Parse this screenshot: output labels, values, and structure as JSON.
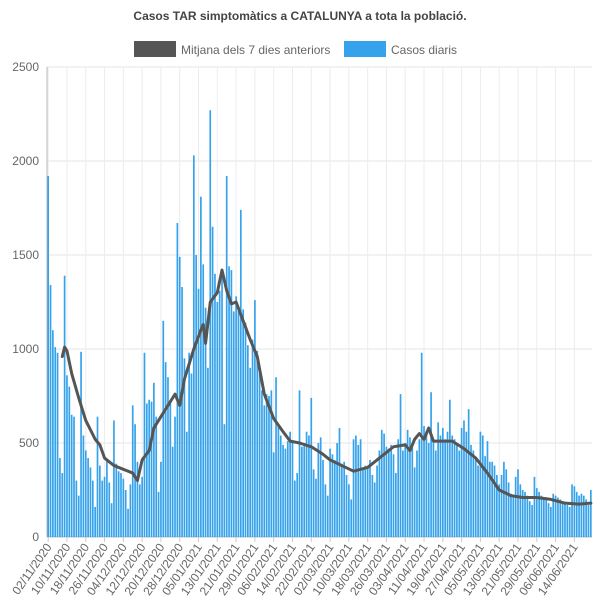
{
  "chart_data": {
    "type": "bar",
    "title": "Casos TAR simptomàtics a CATALUNYA a tota la població.",
    "xlabel": "",
    "ylabel": "",
    "ylim": [
      0,
      2500
    ],
    "yticks": [
      0,
      500,
      1000,
      1500,
      2000,
      2500
    ],
    "grid": true,
    "legend_position": "top-center",
    "x_start_date": "02/11/2020",
    "x_end_date": "21/06/2021",
    "xtick_labels": [
      "02/11/2020",
      "10/11/2020",
      "18/11/2020",
      "26/11/2020",
      "04/12/2020",
      "12/12/2020",
      "20/12/2020",
      "28/12/2020",
      "05/01/2021",
      "13/01/2021",
      "21/01/2021",
      "29/01/2021",
      "06/02/2021",
      "14/02/2021",
      "22/02/2021",
      "02/03/2021",
      "10/03/2021",
      "18/03/2021",
      "26/03/2021",
      "03/04/2021",
      "11/04/2021",
      "19/04/2021",
      "27/04/2021",
      "05/05/2021",
      "13/05/2021",
      "21/05/2021",
      "29/05/2021",
      "06/06/2021",
      "14/06/2021"
    ],
    "series": [
      {
        "name": "Mitjana dels 7 dies anteriors",
        "type": "line",
        "color": "#555555",
        "anchors": [
          [
            "08/11/2020",
            960
          ],
          [
            "09/11/2020",
            1010
          ],
          [
            "10/11/2020",
            990
          ],
          [
            "12/11/2020",
            870
          ],
          [
            "15/11/2020",
            740
          ],
          [
            "18/11/2020",
            620
          ],
          [
            "22/11/2020",
            520
          ],
          [
            "24/11/2020",
            490
          ],
          [
            "26/11/2020",
            420
          ],
          [
            "30/11/2020",
            380
          ],
          [
            "04/12/2020",
            360
          ],
          [
            "08/12/2020",
            340
          ],
          [
            "10/12/2020",
            300
          ],
          [
            "12/12/2020",
            410
          ],
          [
            "15/12/2020",
            460
          ],
          [
            "17/12/2020",
            580
          ],
          [
            "20/12/2020",
            640
          ],
          [
            "24/12/2020",
            720
          ],
          [
            "26/12/2020",
            760
          ],
          [
            "28/12/2020",
            700
          ],
          [
            "30/12/2020",
            840
          ],
          [
            "03/01/2021",
            1000
          ],
          [
            "06/01/2021",
            1100
          ],
          [
            "07/01/2021",
            1130
          ],
          [
            "08/01/2021",
            1030
          ],
          [
            "10/01/2021",
            1250
          ],
          [
            "13/01/2021",
            1300
          ],
          [
            "15/01/2021",
            1420
          ],
          [
            "17/01/2021",
            1310
          ],
          [
            "19/01/2021",
            1240
          ],
          [
            "21/01/2021",
            1250
          ],
          [
            "24/01/2021",
            1150
          ],
          [
            "27/01/2021",
            1050
          ],
          [
            "30/01/2021",
            960
          ],
          [
            "02/02/2021",
            760
          ],
          [
            "06/02/2021",
            630
          ],
          [
            "10/02/2021",
            560
          ],
          [
            "13/02/2021",
            510
          ],
          [
            "17/02/2021",
            500
          ],
          [
            "22/02/2021",
            480
          ],
          [
            "27/02/2021",
            440
          ],
          [
            "02/03/2021",
            410
          ],
          [
            "07/03/2021",
            380
          ],
          [
            "12/03/2021",
            350
          ],
          [
            "18/03/2021",
            370
          ],
          [
            "22/03/2021",
            410
          ],
          [
            "26/03/2021",
            450
          ],
          [
            "29/03/2021",
            480
          ],
          [
            "03/04/2021",
            490
          ],
          [
            "05/04/2021",
            460
          ],
          [
            "07/04/2021",
            520
          ],
          [
            "09/04/2021",
            550
          ],
          [
            "11/04/2021",
            520
          ],
          [
            "13/04/2021",
            580
          ],
          [
            "15/04/2021",
            510
          ],
          [
            "19/04/2021",
            510
          ],
          [
            "23/04/2021",
            510
          ],
          [
            "28/04/2021",
            470
          ],
          [
            "03/05/2021",
            420
          ],
          [
            "08/05/2021",
            340
          ],
          [
            "13/05/2021",
            250
          ],
          [
            "18/05/2021",
            220
          ],
          [
            "23/05/2021",
            210
          ],
          [
            "29/05/2021",
            210
          ],
          [
            "04/06/2021",
            200
          ],
          [
            "10/06/2021",
            180
          ],
          [
            "16/06/2021",
            175
          ],
          [
            "21/06/2021",
            180
          ]
        ]
      },
      {
        "name": "Casos diaris",
        "type": "bar",
        "color": "#36a2eb",
        "values": [
          1920,
          1340,
          1100,
          1010,
          980,
          420,
          340,
          1390,
          860,
          800,
          650,
          640,
          300,
          220,
          985,
          540,
          460,
          420,
          370,
          300,
          160,
          640,
          380,
          300,
          320,
          410,
          290,
          180,
          620,
          390,
          350,
          340,
          310,
          250,
          150,
          280,
          700,
          600,
          400,
          280,
          320,
          980,
          710,
          730,
          720,
          820,
          640,
          240,
          400,
          1150,
          930,
          850,
          720,
          480,
          640,
          1670,
          1490,
          1330,
          950,
          560,
          980,
          870,
          2030,
          1500,
          1320,
          1810,
          1450,
          1220,
          900,
          2270,
          1650,
          1400,
          1250,
          1310,
          1420,
          600,
          1920,
          1440,
          1420,
          1200,
          1280,
          1220,
          1740,
          1210,
          1140,
          1020,
          900,
          1050,
          1260,
          990,
          870,
          780,
          700,
          760,
          750,
          780,
          450,
          850,
          600,
          540,
          490,
          470,
          510,
          560,
          500,
          300,
          340,
          780,
          480,
          500,
          560,
          540,
          740,
          360,
          310,
          500,
          530,
          410,
          280,
          220,
          470,
          440,
          410,
          500,
          580,
          390,
          400,
          330,
          280,
          200,
          520,
          540,
          490,
          520,
          360,
          380,
          370,
          410,
          330,
          290,
          380,
          460,
          570,
          550,
          480,
          470,
          490,
          440,
          340,
          520,
          760,
          460,
          500,
          570,
          530,
          490,
          370,
          460,
          520,
          980,
          590,
          560,
          500,
          770,
          510,
          460,
          610,
          540,
          580,
          520,
          560,
          730,
          540,
          520,
          500,
          460,
          580,
          620,
          560,
          680,
          490,
          460,
          420,
          380,
          560,
          540,
          430,
          510,
          400,
          400,
          380,
          330,
          280,
          330,
          400,
          360,
          290,
          230,
          210,
          320,
          360,
          280,
          250,
          240,
          220,
          190,
          170,
          320,
          260,
          240,
          220,
          210,
          200,
          180,
          160,
          230,
          220,
          210,
          200,
          190,
          180,
          170,
          160,
          280,
          270,
          240,
          220,
          230,
          220,
          200,
          170,
          250,
          230,
          210,
          190,
          250,
          210,
          90
        ]
      }
    ]
  }
}
